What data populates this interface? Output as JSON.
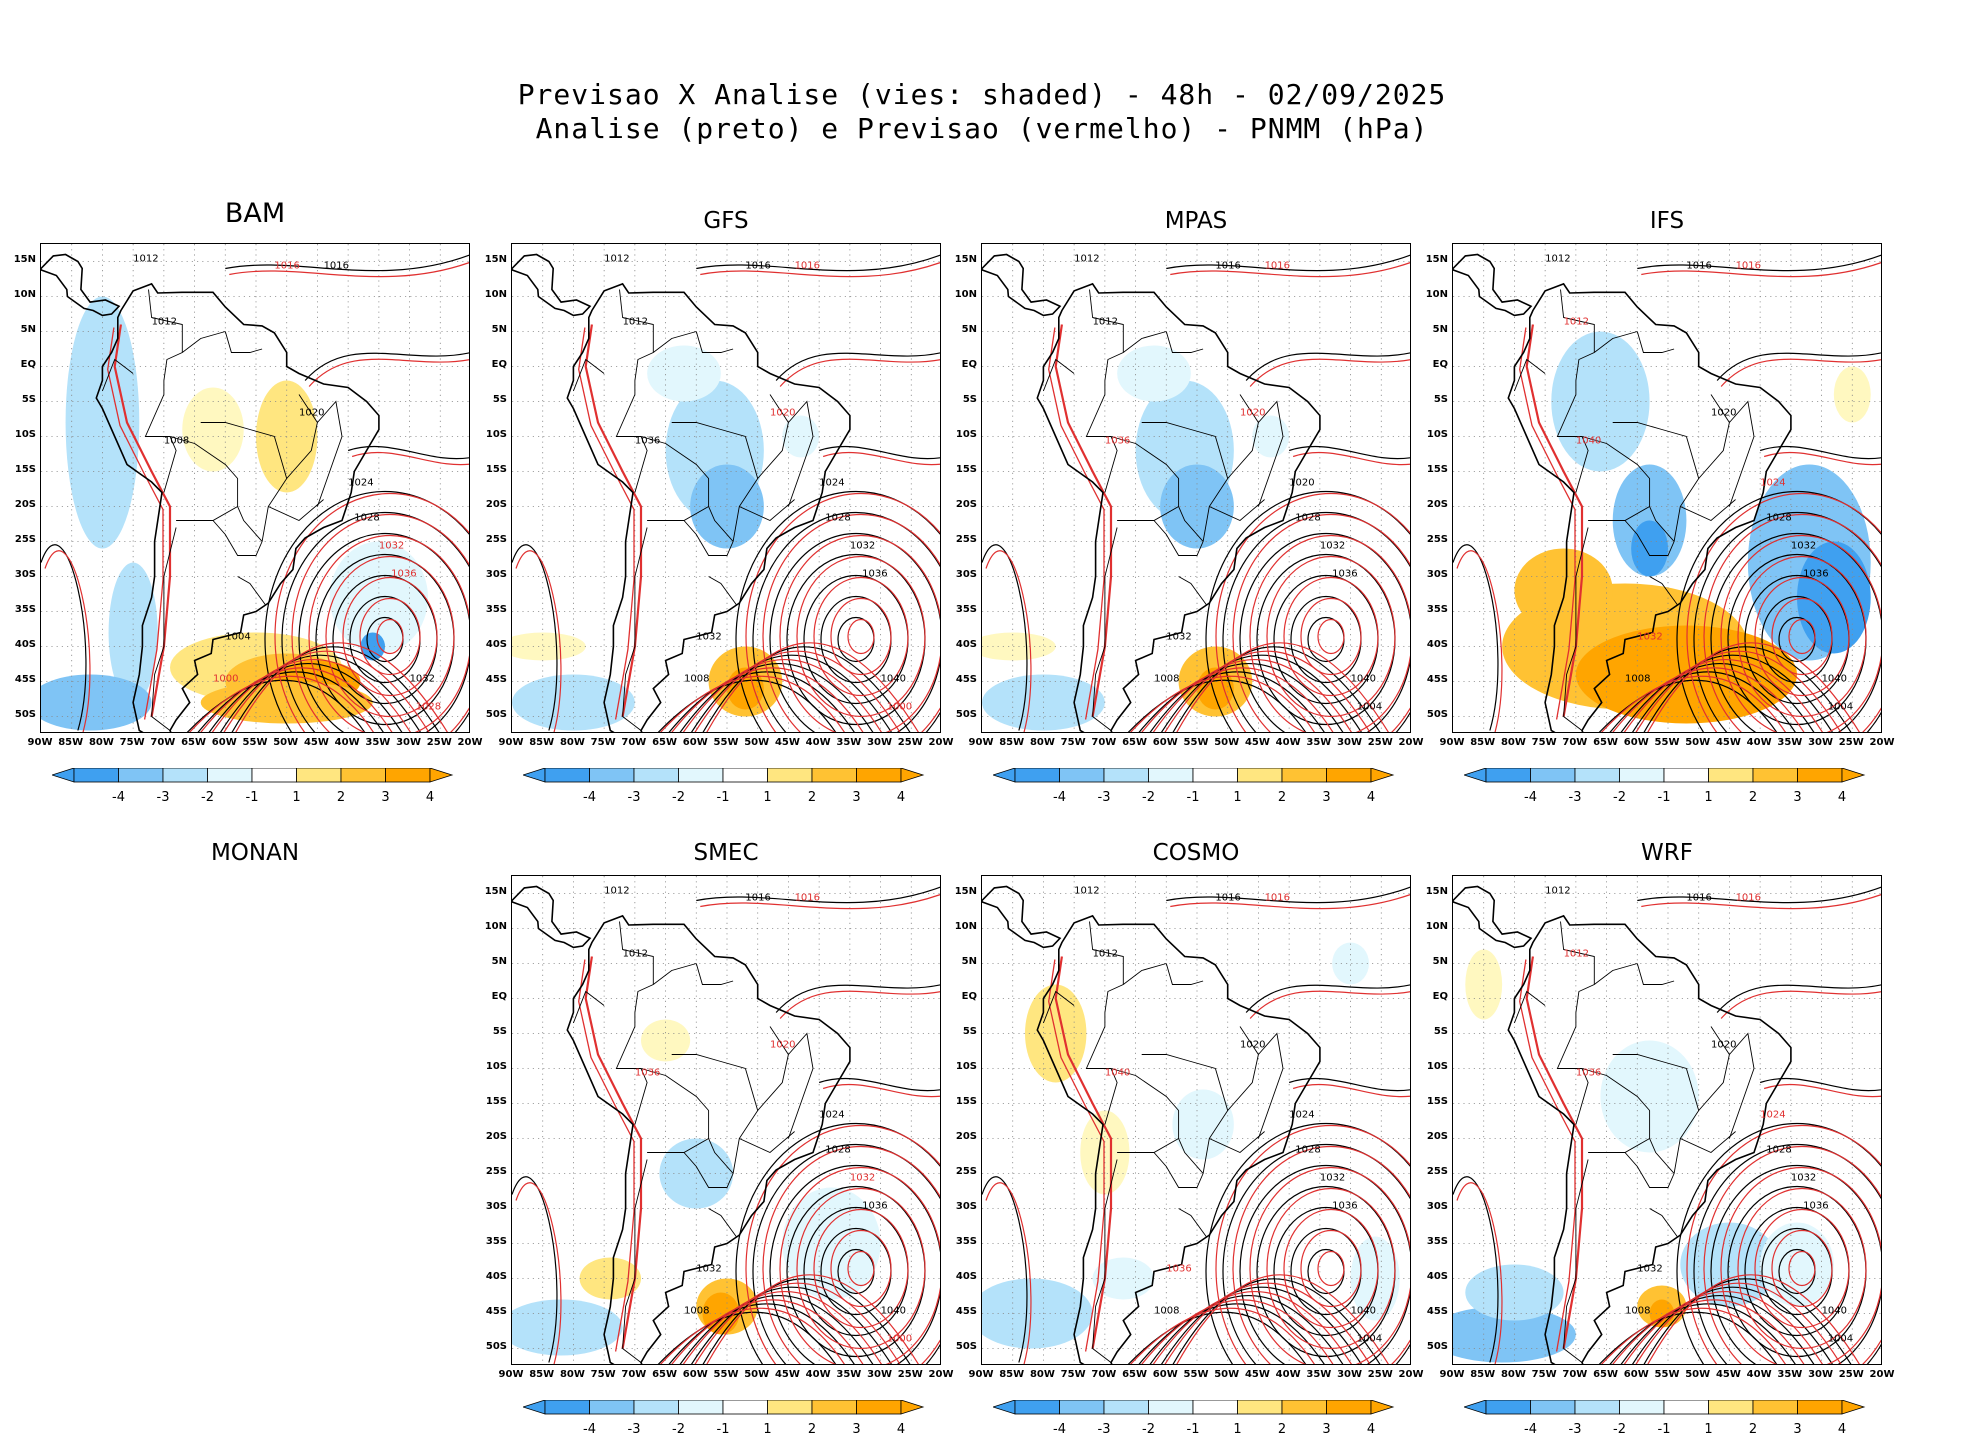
{
  "title": {
    "line1": "Previsao X Analise (vies: shaded) - 48h - 02/09/2025",
    "line2": "Analise (preto) e Previsao (vermelho) - PNMM (hPa)"
  },
  "colors": {
    "neg4": "#3fa0f0",
    "neg3": "#7fc4f5",
    "neg2": "#b4e2fa",
    "neg1": "#e2f7fd",
    "pos1": "#fff8c0",
    "pos2": "#ffe680",
    "pos3": "#ffc233",
    "pos4": "#ffa500",
    "analysis": "#000000",
    "forecast": "#e03030"
  },
  "axes": {
    "lat_labels": [
      "15N",
      "10N",
      "5N",
      "EQ",
      "5S",
      "10S",
      "15S",
      "20S",
      "25S",
      "30S",
      "35S",
      "40S",
      "45S",
      "50S"
    ],
    "lon_labels": [
      "90W",
      "85W",
      "80W",
      "75W",
      "70W",
      "65W",
      "60W",
      "55W",
      "50W",
      "45W",
      "40W",
      "35W",
      "30W",
      "25W",
      "20W"
    ]
  },
  "colorbar": {
    "labels": [
      "-4",
      "-3",
      "-2",
      "-1",
      "1",
      "2",
      "3",
      "4"
    ]
  },
  "panels": [
    {
      "name": "BAM",
      "empty": false,
      "bias": "warm-east",
      "labels": [
        {
          "t": "1012",
          "c": "k"
        },
        {
          "t": "1016",
          "c": "r"
        },
        {
          "t": "1016",
          "c": "k"
        },
        {
          "t": "1012",
          "c": "k"
        },
        {
          "t": "1020",
          "c": "k"
        },
        {
          "t": "1024",
          "c": "k"
        },
        {
          "t": "1028",
          "c": "k"
        },
        {
          "t": "1032",
          "c": "r"
        },
        {
          "t": "1036",
          "c": "r"
        },
        {
          "t": "1032",
          "c": "k"
        },
        {
          "t": "1008",
          "c": "k"
        },
        {
          "t": "1004",
          "c": "k"
        },
        {
          "t": "1000",
          "c": "r"
        },
        {
          "t": "1028",
          "c": "r"
        }
      ]
    },
    {
      "name": "GFS",
      "empty": false,
      "bias": "cool-brazil",
      "labels": [
        {
          "t": "1012",
          "c": "k"
        },
        {
          "t": "1016",
          "c": "k"
        },
        {
          "t": "1016",
          "c": "r"
        },
        {
          "t": "1012",
          "c": "k"
        },
        {
          "t": "1020",
          "c": "r"
        },
        {
          "t": "1024",
          "c": "k"
        },
        {
          "t": "1028",
          "c": "k"
        },
        {
          "t": "1032",
          "c": "k"
        },
        {
          "t": "1036",
          "c": "k"
        },
        {
          "t": "1040",
          "c": "k"
        },
        {
          "t": "1036",
          "c": "k"
        },
        {
          "t": "1032",
          "c": "k"
        },
        {
          "t": "1008",
          "c": "k"
        },
        {
          "t": "1000",
          "c": "r"
        }
      ]
    },
    {
      "name": "MPAS",
      "empty": false,
      "bias": "cool-brazil",
      "labels": [
        {
          "t": "1012",
          "c": "k"
        },
        {
          "t": "1016",
          "c": "k"
        },
        {
          "t": "1016",
          "c": "r"
        },
        {
          "t": "1012",
          "c": "k"
        },
        {
          "t": "1020",
          "c": "r"
        },
        {
          "t": "1020",
          "c": "k"
        },
        {
          "t": "1028",
          "c": "k"
        },
        {
          "t": "1032",
          "c": "k"
        },
        {
          "t": "1036",
          "c": "k"
        },
        {
          "t": "1040",
          "c": "k"
        },
        {
          "t": "1036",
          "c": "r"
        },
        {
          "t": "1032",
          "c": "k"
        },
        {
          "t": "1008",
          "c": "k"
        },
        {
          "t": "1004",
          "c": "k"
        }
      ]
    },
    {
      "name": "IFS",
      "empty": false,
      "bias": "warm-south",
      "labels": [
        {
          "t": "1012",
          "c": "k"
        },
        {
          "t": "1016",
          "c": "k"
        },
        {
          "t": "1016",
          "c": "r"
        },
        {
          "t": "1012",
          "c": "r"
        },
        {
          "t": "1020",
          "c": "k"
        },
        {
          "t": "1024",
          "c": "r"
        },
        {
          "t": "1028",
          "c": "k"
        },
        {
          "t": "1032",
          "c": "k"
        },
        {
          "t": "1036",
          "c": "k"
        },
        {
          "t": "1040",
          "c": "k"
        },
        {
          "t": "1040",
          "c": "r"
        },
        {
          "t": "1032",
          "c": "r"
        },
        {
          "t": "1008",
          "c": "k"
        },
        {
          "t": "1004",
          "c": "k"
        }
      ]
    },
    {
      "name": "MONAN",
      "empty": true,
      "bias": "none",
      "labels": []
    },
    {
      "name": "SMEC",
      "empty": false,
      "bias": "warm-spot",
      "labels": [
        {
          "t": "1012",
          "c": "k"
        },
        {
          "t": "1016",
          "c": "k"
        },
        {
          "t": "1016",
          "c": "r"
        },
        {
          "t": "1012",
          "c": "k"
        },
        {
          "t": "1020",
          "c": "r"
        },
        {
          "t": "1024",
          "c": "k"
        },
        {
          "t": "1028",
          "c": "k"
        },
        {
          "t": "1032",
          "c": "r"
        },
        {
          "t": "1036",
          "c": "k"
        },
        {
          "t": "1040",
          "c": "k"
        },
        {
          "t": "1036",
          "c": "r"
        },
        {
          "t": "1032",
          "c": "k"
        },
        {
          "t": "1008",
          "c": "k"
        },
        {
          "t": "1000",
          "c": "r"
        }
      ]
    },
    {
      "name": "COSMO",
      "empty": false,
      "bias": "mixed",
      "labels": [
        {
          "t": "1012",
          "c": "k"
        },
        {
          "t": "1016",
          "c": "k"
        },
        {
          "t": "1016",
          "c": "r"
        },
        {
          "t": "1012",
          "c": "k"
        },
        {
          "t": "1020",
          "c": "k"
        },
        {
          "t": "1024",
          "c": "k"
        },
        {
          "t": "1028",
          "c": "k"
        },
        {
          "t": "1032",
          "c": "k"
        },
        {
          "t": "1036",
          "c": "k"
        },
        {
          "t": "1040",
          "c": "k"
        },
        {
          "t": "1040",
          "c": "r"
        },
        {
          "t": "1036",
          "c": "r"
        },
        {
          "t": "1008",
          "c": "k"
        },
        {
          "t": "1004",
          "c": "k"
        }
      ]
    },
    {
      "name": "WRF",
      "empty": false,
      "bias": "cool-ocean",
      "labels": [
        {
          "t": "1012",
          "c": "k"
        },
        {
          "t": "1016",
          "c": "k"
        },
        {
          "t": "1016",
          "c": "r"
        },
        {
          "t": "1012",
          "c": "r"
        },
        {
          "t": "1020",
          "c": "k"
        },
        {
          "t": "1024",
          "c": "r"
        },
        {
          "t": "1028",
          "c": "k"
        },
        {
          "t": "1032",
          "c": "k"
        },
        {
          "t": "1036",
          "c": "k"
        },
        {
          "t": "1040",
          "c": "k"
        },
        {
          "t": "1036",
          "c": "r"
        },
        {
          "t": "1032",
          "c": "k"
        },
        {
          "t": "1008",
          "c": "k"
        },
        {
          "t": "1004",
          "c": "k"
        }
      ]
    }
  ]
}
